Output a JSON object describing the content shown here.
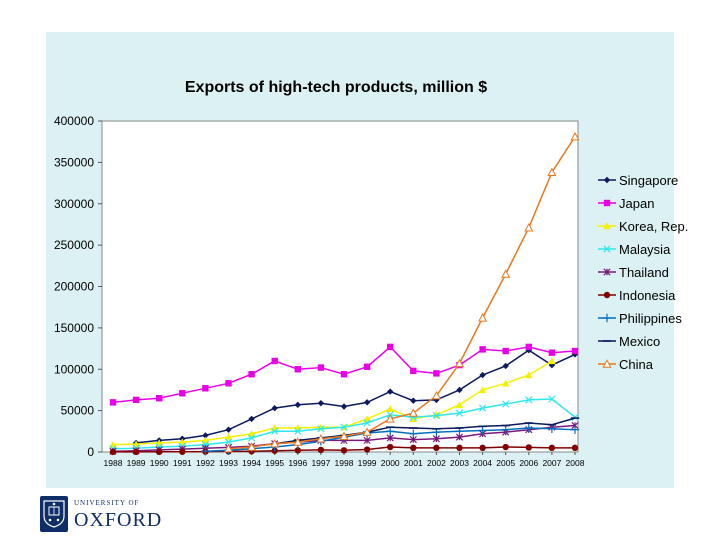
{
  "logo": {
    "university_of": "UNIVERSITY OF",
    "name": "OXFORD"
  },
  "chart_data": {
    "type": "line",
    "title": "Exports of high-tech products, million $",
    "xlabel": "",
    "ylabel": "",
    "ylim": [
      0,
      400000
    ],
    "yticks": [
      0,
      50000,
      100000,
      150000,
      200000,
      250000,
      300000,
      350000,
      400000
    ],
    "grid": false,
    "legend_position": "right",
    "x": [
      "1988",
      "1989",
      "1990",
      "1991",
      "1992",
      "1993",
      "1994",
      "1995",
      "1996",
      "1997",
      "1998",
      "1999",
      "2000",
      "2001",
      "2002",
      "2003",
      "2004",
      "2005",
      "2006",
      "2007",
      "2008"
    ],
    "series": [
      {
        "name": "Singapore",
        "color": "#0a1a5c",
        "marker": "diamond",
        "values": [
          null,
          11000,
          14000,
          16000,
          20000,
          27000,
          40000,
          53000,
          57000,
          59000,
          55000,
          60000,
          73000,
          62000,
          63000,
          75000,
          93000,
          104000,
          123000,
          105000,
          118000
        ]
      },
      {
        "name": "Japan",
        "color": "#e800e8",
        "marker": "square",
        "values": [
          60000,
          63000,
          65000,
          71000,
          77000,
          83000,
          94000,
          110000,
          100000,
          102000,
          94000,
          103000,
          127000,
          98000,
          95000,
          105000,
          124000,
          122000,
          127000,
          120000,
          122000
        ]
      },
      {
        "name": "Korea, Rep.",
        "color": "#f5f000",
        "marker": "triangle",
        "values": [
          9000,
          9500,
          11000,
          12000,
          14000,
          18000,
          22000,
          29000,
          29000,
          30000,
          30000,
          40000,
          52000,
          40000,
          45000,
          57000,
          75000,
          83000,
          93000,
          110000,
          null
        ]
      },
      {
        "name": "Malaysia",
        "color": "#2ee8ee",
        "marker": "x",
        "values": [
          4000,
          4500,
          6000,
          7000,
          9000,
          12000,
          17000,
          25000,
          25000,
          28000,
          30000,
          35000,
          45000,
          42000,
          44000,
          47000,
          53000,
          58000,
          63000,
          64000,
          42000
        ]
      },
      {
        "name": "Thailand",
        "color": "#7a1a78",
        "marker": "star",
        "values": [
          1000,
          1500,
          2500,
          3500,
          4500,
          5500,
          7000,
          10000,
          12000,
          14000,
          14000,
          14000,
          17000,
          15000,
          16000,
          18000,
          22000,
          24000,
          27000,
          30000,
          32000
        ]
      },
      {
        "name": "Indonesia",
        "color": "#800000",
        "marker": "circle",
        "values": [
          100,
          100,
          200,
          300,
          500,
          700,
          900,
          1500,
          2000,
          2500,
          2000,
          3000,
          6000,
          5000,
          5000,
          5000,
          5000,
          6000,
          5500,
          5000,
          5000
        ]
      },
      {
        "name": "Philippines",
        "color": "#0070c0",
        "marker": "plus",
        "values": [
          null,
          null,
          null,
          null,
          1000,
          2000,
          4000,
          6000,
          9000,
          13000,
          18000,
          23000,
          25000,
          22000,
          24000,
          25000,
          26000,
          27000,
          29000,
          28000,
          27000
        ]
      },
      {
        "name": "Mexico",
        "color": "#0a1a5c",
        "marker": "dash",
        "values": [
          null,
          null,
          null,
          null,
          null,
          null,
          null,
          10000,
          14000,
          17000,
          20000,
          24000,
          30000,
          29000,
          28000,
          29000,
          31000,
          32000,
          35000,
          33000,
          41000
        ]
      },
      {
        "name": "China",
        "color": "#e87820",
        "marker": "open-triangle",
        "values": [
          null,
          null,
          null,
          null,
          null,
          4000,
          6000,
          10000,
          12000,
          16000,
          19000,
          24000,
          40000,
          47000,
          68000,
          107000,
          162000,
          215000,
          271000,
          338000,
          381000
        ]
      }
    ]
  }
}
